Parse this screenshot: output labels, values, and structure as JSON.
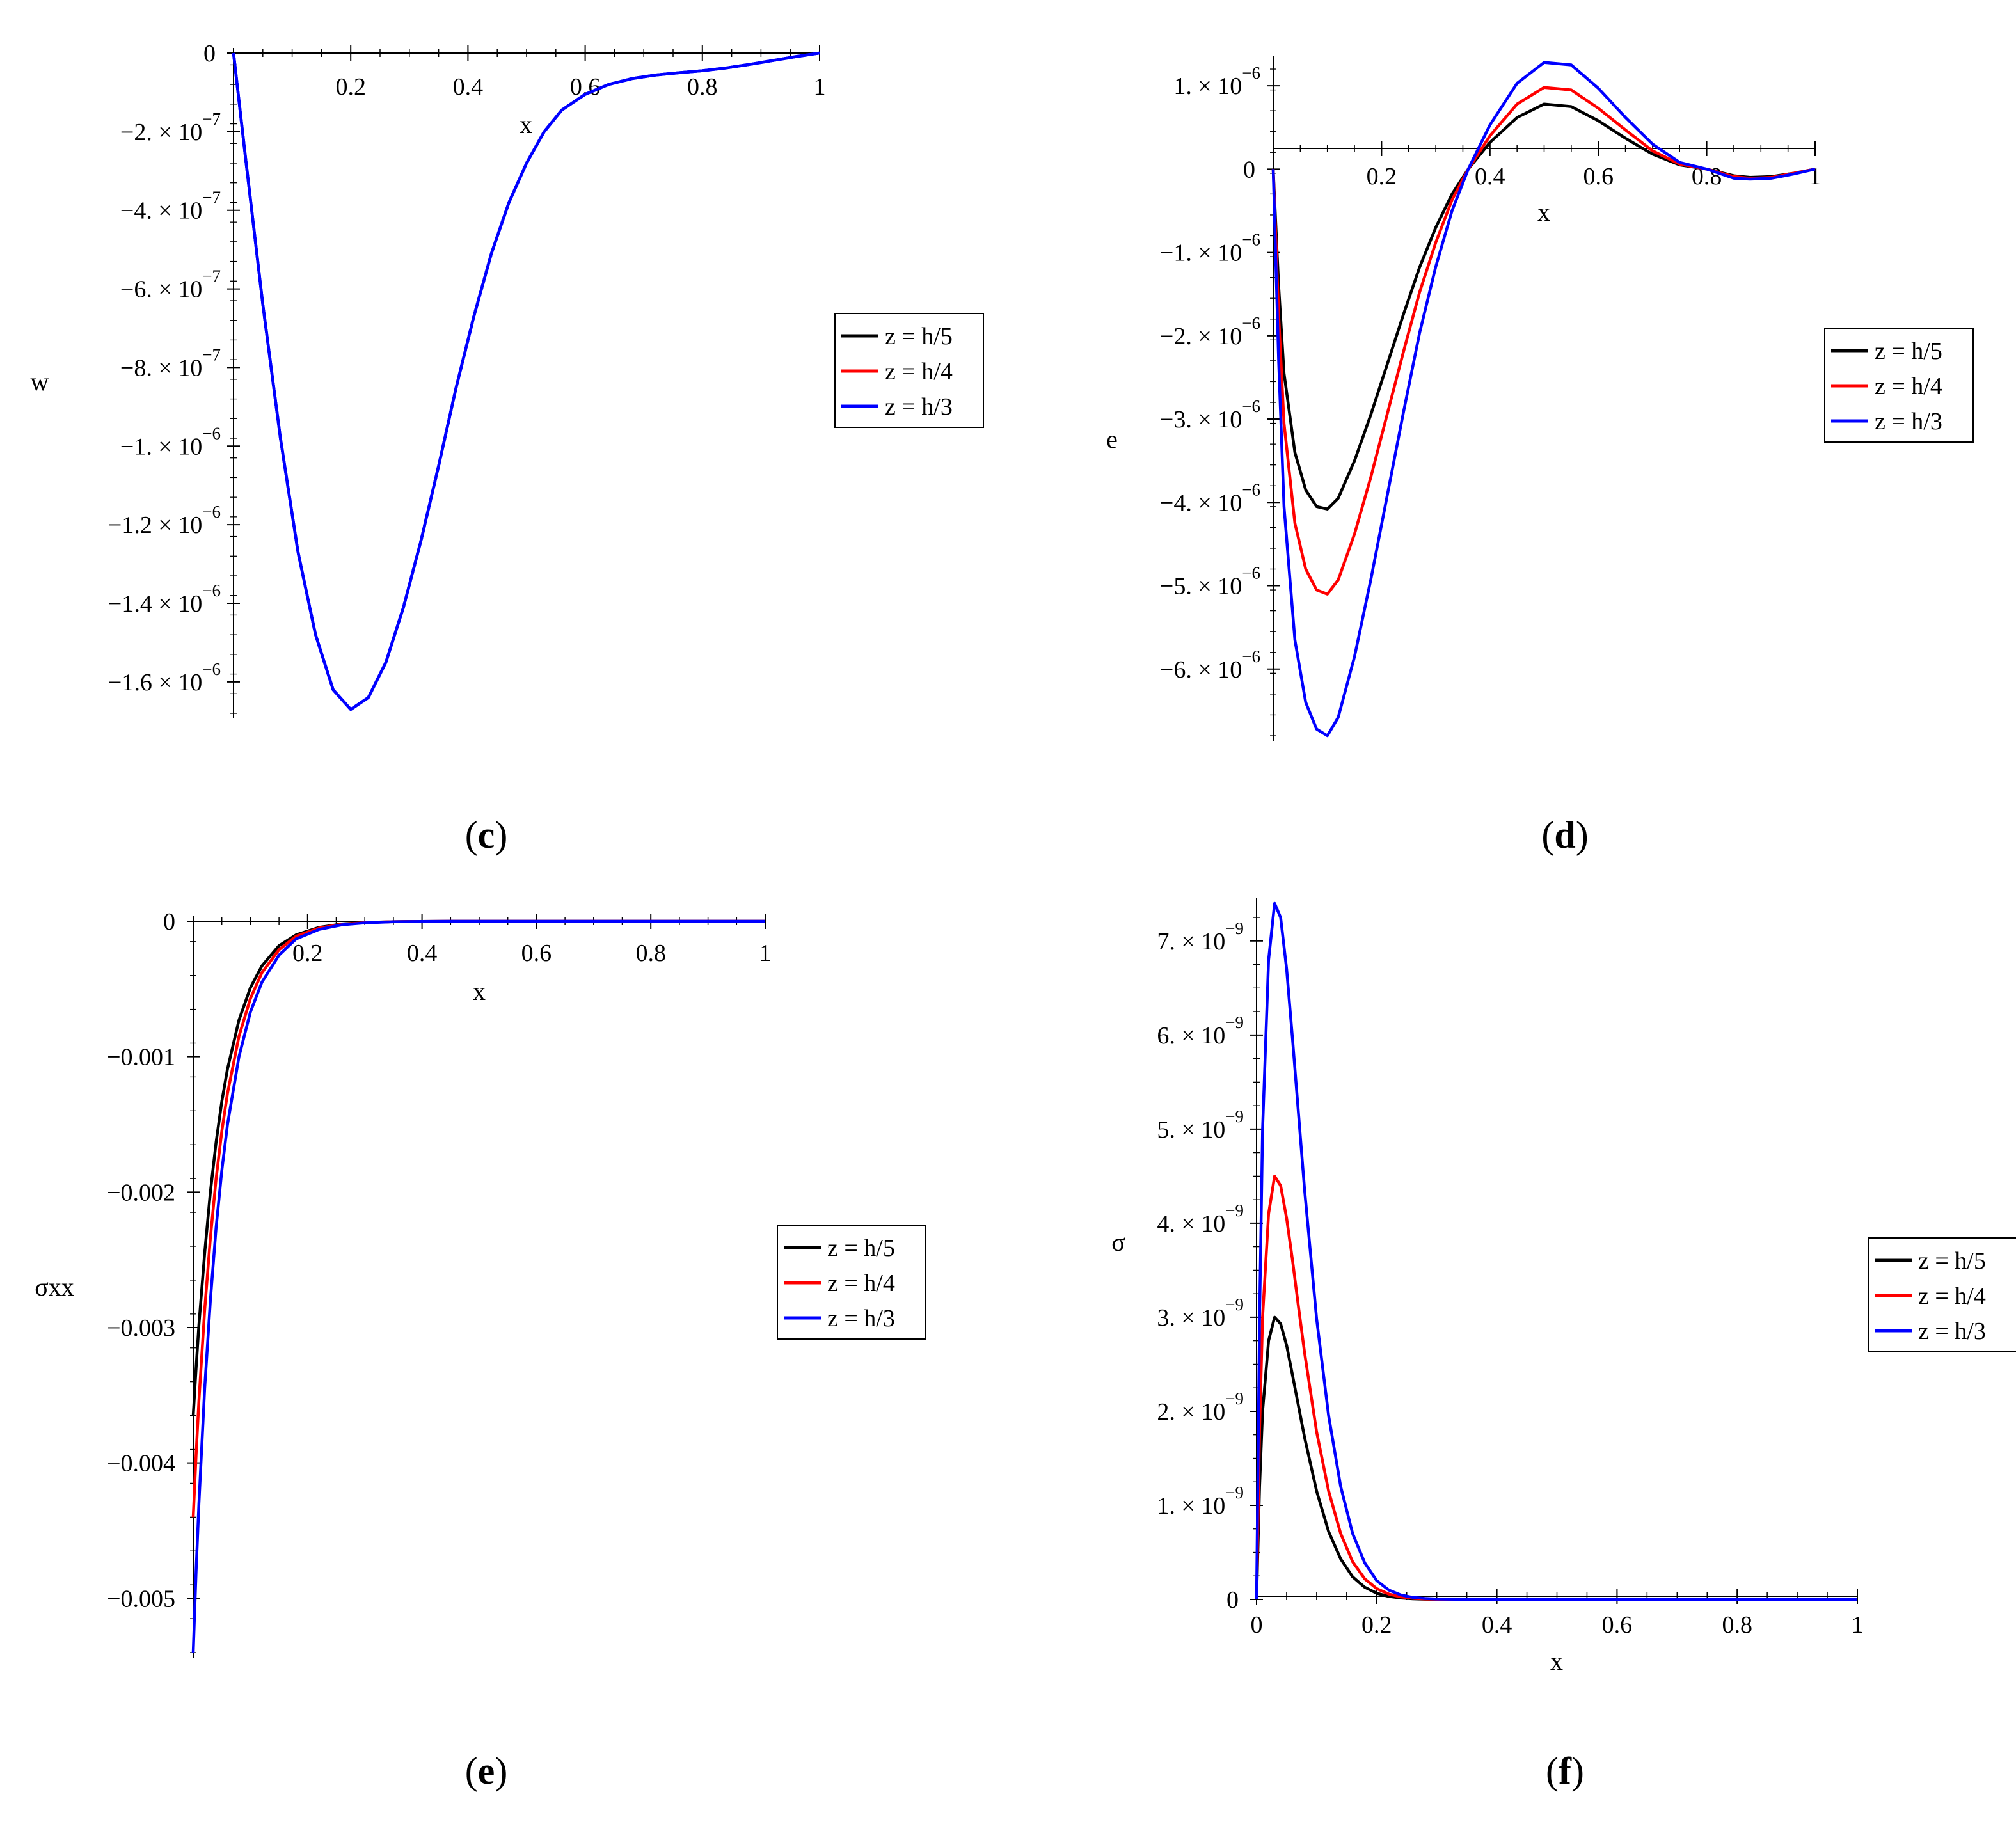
{
  "captions": {
    "c": "c",
    "d": "d",
    "e": "e",
    "f": "f"
  },
  "legend_entries": [
    "z = h/5",
    "z = h/4",
    "z = h/3"
  ],
  "series_colors": [
    "#000000",
    "#ff0000",
    "#0000ff"
  ],
  "chart_data": [
    {
      "id": "c",
      "type": "line",
      "title": "",
      "xlabel": "x",
      "ylabel": "w",
      "xlim": [
        0,
        1
      ],
      "ylim": [
        -1.68e-06,
        0
      ],
      "xticks": [
        0.2,
        0.4,
        0.6,
        0.8,
        1
      ],
      "xtick_labels": [
        "0.2",
        "0.4",
        "0.6",
        "0.8",
        "1"
      ],
      "yticks": [
        0,
        -2e-07,
        -4e-07,
        -6e-07,
        -8e-07,
        -1e-06,
        -1.2e-06,
        -1.4e-06,
        -1.6e-06
      ],
      "ytick_labels": [
        {
          "mant": "0",
          "exp": ""
        },
        {
          "mant": "−2. × 10",
          "exp": "−7"
        },
        {
          "mant": "−4. × 10",
          "exp": "−7"
        },
        {
          "mant": "−6. × 10",
          "exp": "−7"
        },
        {
          "mant": "−8. × 10",
          "exp": "−7"
        },
        {
          "mant": "−1. × 10",
          "exp": "−6"
        },
        {
          "mant": "−1.2 × 10",
          "exp": "−6"
        },
        {
          "mant": "−1.4 × 10",
          "exp": "−6"
        },
        {
          "mant": "−1.6 × 10",
          "exp": "−6"
        }
      ],
      "legend": [
        "z = h/5",
        "z = h/4",
        "z = h/3"
      ],
      "x": [
        0,
        0.02,
        0.05,
        0.08,
        0.11,
        0.14,
        0.17,
        0.2,
        0.23,
        0.26,
        0.29,
        0.32,
        0.35,
        0.38,
        0.41,
        0.44,
        0.47,
        0.5,
        0.53,
        0.56,
        0.6,
        0.64,
        0.68,
        0.72,
        0.76,
        0.8,
        0.84,
        0.88,
        0.92,
        0.96,
        1
      ],
      "series": [
        {
          "name": "z = h/5",
          "color": "#0000ff",
          "values": [
            0,
            -2.6e-07,
            -6.4e-07,
            -9.8e-07,
            -1.27e-06,
            -1.48e-06,
            -1.62e-06,
            -1.67e-06,
            -1.64e-06,
            -1.55e-06,
            -1.41e-06,
            -1.24e-06,
            -1.05e-06,
            -8.5e-07,
            -6.7e-07,
            -5.1e-07,
            -3.8e-07,
            -2.8e-07,
            -2e-07,
            -1.45e-07,
            -1.05e-07,
            -8e-08,
            -6.5e-08,
            -5.6e-08,
            -5e-08,
            -4.5e-08,
            -3.8e-08,
            -2.9e-08,
            -1.9e-08,
            -9e-09,
            0
          ]
        },
        {
          "name": "z = h/4",
          "color": "#0000ff",
          "values": [
            0,
            -2.6e-07,
            -6.4e-07,
            -9.8e-07,
            -1.27e-06,
            -1.48e-06,
            -1.62e-06,
            -1.67e-06,
            -1.64e-06,
            -1.55e-06,
            -1.41e-06,
            -1.24e-06,
            -1.05e-06,
            -8.5e-07,
            -6.7e-07,
            -5.1e-07,
            -3.8e-07,
            -2.8e-07,
            -2e-07,
            -1.45e-07,
            -1.05e-07,
            -8e-08,
            -6.5e-08,
            -5.6e-08,
            -5e-08,
            -4.5e-08,
            -3.8e-08,
            -2.9e-08,
            -1.9e-08,
            -9e-09,
            0
          ]
        },
        {
          "name": "z = h/3",
          "color": "#0000ff",
          "values": [
            0,
            -2.6e-07,
            -6.4e-07,
            -9.8e-07,
            -1.27e-06,
            -1.48e-06,
            -1.62e-06,
            -1.67e-06,
            -1.64e-06,
            -1.55e-06,
            -1.41e-06,
            -1.24e-06,
            -1.05e-06,
            -8.5e-07,
            -6.7e-07,
            -5.1e-07,
            -3.8e-07,
            -2.8e-07,
            -2e-07,
            -1.45e-07,
            -1.05e-07,
            -8e-08,
            -6.5e-08,
            -5.6e-08,
            -5e-08,
            -4.5e-08,
            -3.8e-08,
            -2.9e-08,
            -1.9e-08,
            -9e-09,
            0
          ]
        }
      ]
    },
    {
      "id": "d",
      "type": "line",
      "title": "",
      "xlabel": "x",
      "ylabel": "e",
      "xlim": [
        0,
        1
      ],
      "ylim": [
        -6.8e-06,
        1.3e-06
      ],
      "xticks": [
        0.2,
        0.4,
        0.6,
        0.8,
        1
      ],
      "xtick_labels": [
        "0.2",
        "0.4",
        "0.6",
        "0.8",
        "1"
      ],
      "yticks": [
        1e-06,
        0,
        -1e-06,
        -2e-06,
        -3e-06,
        -4e-06,
        -5e-06,
        -6e-06
      ],
      "ytick_labels": [
        {
          "mant": "1. × 10",
          "exp": "−6"
        },
        {
          "mant": "0",
          "exp": ""
        },
        {
          "mant": "−1. × 10",
          "exp": "−6"
        },
        {
          "mant": "−2. × 10",
          "exp": "−6"
        },
        {
          "mant": "−3. × 10",
          "exp": "−6"
        },
        {
          "mant": "−4. × 10",
          "exp": "−6"
        },
        {
          "mant": "−5. × 10",
          "exp": "−6"
        },
        {
          "mant": "−6. × 10",
          "exp": "−6"
        }
      ],
      "legend": [
        "z = h/5",
        "z = h/4",
        "z = h/3"
      ],
      "x": [
        0,
        0.01,
        0.02,
        0.04,
        0.06,
        0.08,
        0.1,
        0.12,
        0.15,
        0.18,
        0.21,
        0.24,
        0.27,
        0.3,
        0.33,
        0.36,
        0.4,
        0.45,
        0.5,
        0.55,
        0.6,
        0.65,
        0.7,
        0.75,
        0.8,
        0.85,
        0.88,
        0.92,
        0.96,
        1
      ],
      "series": [
        {
          "name": "z = h/5",
          "color": "#000000",
          "values": [
            0,
            -1.4e-06,
            -2.45e-06,
            -3.4e-06,
            -3.85e-06,
            -4.05e-06,
            -4.08e-06,
            -3.95e-06,
            -3.5e-06,
            -2.95e-06,
            -2.35e-06,
            -1.75e-06,
            -1.18e-06,
            -7e-07,
            -3e-07,
            0,
            3.2e-07,
            6.2e-07,
            7.8e-07,
            7.5e-07,
            5.8e-07,
            3.7e-07,
            1.8e-07,
            5e-08,
            0,
            -8e-08,
            -1e-07,
            -9e-08,
            -5e-08,
            0
          ]
        },
        {
          "name": "z = h/4",
          "color": "#ff0000",
          "values": [
            0,
            -1.75e-06,
            -3.05e-06,
            -4.25e-06,
            -4.8e-06,
            -5.05e-06,
            -5.1e-06,
            -4.93e-06,
            -4.38e-06,
            -3.7e-06,
            -2.95e-06,
            -2.2e-06,
            -1.48e-06,
            -8.8e-07,
            -3.7e-07,
            0,
            4e-07,
            7.8e-07,
            9.8e-07,
            9.5e-07,
            7.3e-07,
            4.7e-07,
            2.2e-07,
            6e-08,
            0,
            -9e-08,
            -1.1e-07,
            -1e-07,
            -5e-08,
            0
          ]
        },
        {
          "name": "z = h/3",
          "color": "#0000ff",
          "values": [
            0,
            -2.3e-06,
            -4.05e-06,
            -5.65e-06,
            -6.4e-06,
            -6.72e-06,
            -6.8e-06,
            -6.58e-06,
            -5.85e-06,
            -4.93e-06,
            -3.93e-06,
            -2.93e-06,
            -1.97e-06,
            -1.17e-06,
            -5e-07,
            0,
            5.3e-07,
            1.03e-06,
            1.28e-06,
            1.25e-06,
            9.7e-07,
            6.2e-07,
            3e-07,
            8e-08,
            0,
            -1.1e-07,
            -1.2e-07,
            -1.1e-07,
            -6e-08,
            0
          ]
        }
      ]
    },
    {
      "id": "e",
      "type": "line",
      "title": "",
      "xlabel": "x",
      "ylabel": "σxx",
      "xlim": [
        0,
        1
      ],
      "ylim": [
        -0.0054,
        0
      ],
      "xticks": [
        0.2,
        0.4,
        0.6,
        0.8,
        1
      ],
      "xtick_labels": [
        "0.2",
        "0.4",
        "0.6",
        "0.8",
        "1"
      ],
      "yticks": [
        0,
        -0.001,
        -0.002,
        -0.003,
        -0.004,
        -0.005
      ],
      "ytick_labels": [
        {
          "mant": "0",
          "exp": ""
        },
        {
          "mant": "−0.001",
          "exp": ""
        },
        {
          "mant": "−0.002",
          "exp": ""
        },
        {
          "mant": "−0.003",
          "exp": ""
        },
        {
          "mant": "−0.004",
          "exp": ""
        },
        {
          "mant": "−0.005",
          "exp": ""
        }
      ],
      "legend": [
        "z = h/5",
        "z = h/4",
        "z = h/3"
      ],
      "x": [
        0,
        0.005,
        0.01,
        0.02,
        0.03,
        0.04,
        0.05,
        0.06,
        0.08,
        0.1,
        0.12,
        0.15,
        0.18,
        0.22,
        0.26,
        0.3,
        0.35,
        0.4,
        0.45,
        0.5,
        0.6,
        0.7,
        0.8,
        0.9,
        1
      ],
      "series": [
        {
          "name": "z = h/5",
          "color": "#000000",
          "values": [
            -0.00365,
            -0.0033,
            -0.00298,
            -0.00245,
            -0.002,
            -0.00163,
            -0.00133,
            -0.00109,
            -0.00073,
            -0.00049,
            -0.00033,
            -0.00018,
            -0.0001,
            -4.5e-05,
            -2e-05,
            -9e-06,
            -3e-06,
            -1e-06,
            0,
            0,
            0,
            0,
            0,
            0,
            0
          ]
        },
        {
          "name": "z = h/4",
          "color": "#ff0000",
          "values": [
            -0.0044,
            -0.00394,
            -0.00354,
            -0.00287,
            -0.00234,
            -0.0019,
            -0.00155,
            -0.00127,
            -0.00085,
            -0.00057,
            -0.00038,
            -0.00021,
            -0.00011,
            -5e-05,
            -2.2e-05,
            -1e-05,
            -3e-06,
            -1e-06,
            0,
            0,
            0,
            0,
            0,
            0,
            0
          ]
        },
        {
          "name": "z = h/3",
          "color": "#0000ff",
          "values": [
            -0.0054,
            -0.0048,
            -0.0043,
            -0.00345,
            -0.0028,
            -0.00226,
            -0.00184,
            -0.0015,
            -0.001,
            -0.00067,
            -0.00045,
            -0.00025,
            -0.00013,
            -6e-05,
            -2.6e-05,
            -1.2e-05,
            -4e-06,
            -1e-06,
            0,
            0,
            0,
            0,
            0,
            0,
            0
          ]
        }
      ]
    },
    {
      "id": "f",
      "type": "line",
      "title": "",
      "xlabel": "x",
      "ylabel": "σ",
      "xlim": [
        0,
        1
      ],
      "ylim": [
        0,
        7.4e-09
      ],
      "xticks": [
        0,
        0.2,
        0.4,
        0.6,
        0.8,
        1
      ],
      "xtick_labels": [
        "0",
        "0.2",
        "0.4",
        "0.6",
        "0.8",
        "1"
      ],
      "yticks": [
        0,
        1e-09,
        2e-09,
        3e-09,
        4e-09,
        5e-09,
        6e-09,
        7e-09
      ],
      "ytick_labels": [
        {
          "mant": "0",
          "exp": ""
        },
        {
          "mant": "1. × 10",
          "exp": "−9"
        },
        {
          "mant": "2. × 10",
          "exp": "−9"
        },
        {
          "mant": "3. × 10",
          "exp": "−9"
        },
        {
          "mant": "4. × 10",
          "exp": "−9"
        },
        {
          "mant": "5. × 10",
          "exp": "−9"
        },
        {
          "mant": "6. × 10",
          "exp": "−9"
        },
        {
          "mant": "7. × 10",
          "exp": "−9"
        }
      ],
      "legend": [
        "z = h/5",
        "z = h/4",
        "z = h/3"
      ],
      "x": [
        0,
        0.005,
        0.01,
        0.02,
        0.03,
        0.04,
        0.05,
        0.06,
        0.07,
        0.08,
        0.1,
        0.12,
        0.14,
        0.16,
        0.18,
        0.2,
        0.22,
        0.24,
        0.26,
        0.28,
        0.3,
        0.33,
        0.36,
        0.4,
        0.5,
        0.6,
        0.8,
        1
      ],
      "series": [
        {
          "name": "z = h/5",
          "color": "#000000",
          "values": [
            0,
            1.2e-09,
            2e-09,
            2.75e-09,
            3e-09,
            2.93e-09,
            2.7e-09,
            2.38e-09,
            2.05e-09,
            1.72e-09,
            1.15e-09,
            7.2e-10,
            4.3e-10,
            2.4e-10,
            1.3e-10,
            6.6e-11,
            3.2e-11,
            1.5e-11,
            7e-12,
            3e-12,
            1.5e-12,
            5e-13,
            0,
            0,
            0,
            0,
            0,
            0
          ]
        },
        {
          "name": "z = h/4",
          "color": "#ff0000",
          "values": [
            0,
            1.8e-09,
            3e-09,
            4.1e-09,
            4.5e-09,
            4.4e-09,
            4.05e-09,
            3.6e-09,
            3.1e-09,
            2.62e-09,
            1.78e-09,
            1.15e-09,
            7e-10,
            4e-10,
            2.2e-10,
            1.15e-10,
            5.7e-11,
            2.7e-11,
            1.2e-11,
            5e-12,
            2.2e-12,
            7e-13,
            0,
            0,
            0,
            0,
            0,
            0
          ]
        },
        {
          "name": "z = h/3",
          "color": "#0000ff",
          "values": [
            0,
            3e-09,
            5e-09,
            6.8e-09,
            7.4e-09,
            7.25e-09,
            6.7e-09,
            5.95e-09,
            5.15e-09,
            4.35e-09,
            2.98e-09,
            1.95e-09,
            1.2e-09,
            7e-10,
            3.9e-10,
            2e-10,
            1e-10,
            4.8e-11,
            2.2e-11,
            1e-11,
            4e-12,
            1.3e-12,
            0,
            0,
            0,
            0,
            0,
            0
          ]
        }
      ]
    }
  ]
}
